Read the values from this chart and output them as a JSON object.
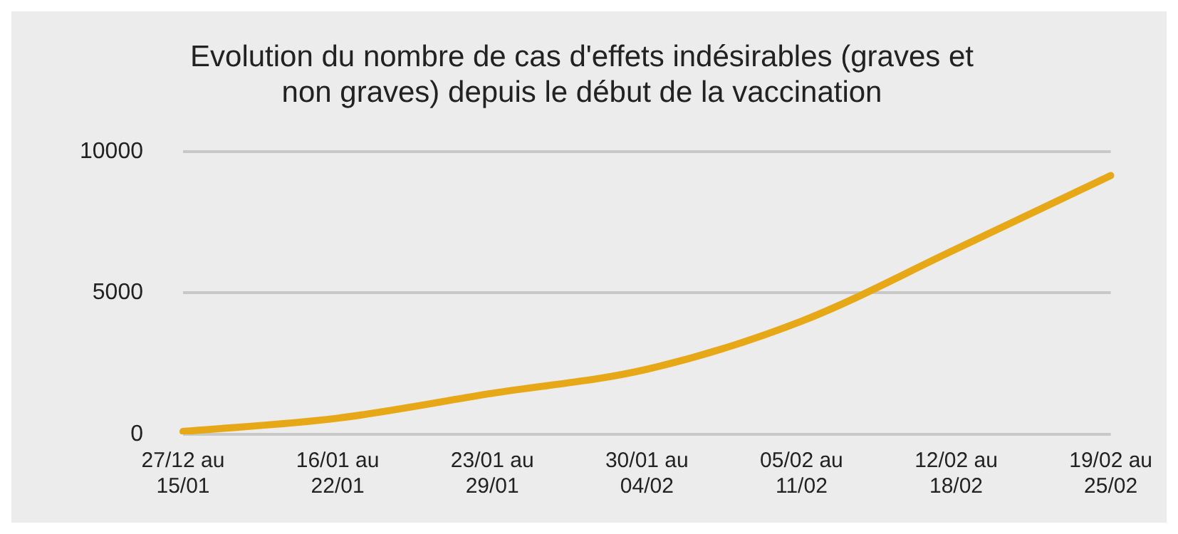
{
  "chart_data": {
    "type": "line",
    "title": "Evolution du nombre de cas d'effets indésirables (graves et\nnon graves) depuis le début de la vaccination",
    "categories": [
      "27/12 au\n15/01",
      "16/01 au\n22/01",
      "23/01 au\n29/01",
      "30/01 au\n04/02",
      "05/02 au\n11/02",
      "12/02 au\n18/02",
      "19/02 au\n25/02"
    ],
    "series": [
      {
        "color": "#e6a817",
        "values": [
          100,
          570,
          1450,
          2300,
          4000,
          6550,
          9150
        ]
      }
    ],
    "ylim": [
      0,
      10000
    ],
    "yticks": [
      0,
      5000,
      10000
    ],
    "grid": "y",
    "legend": false,
    "marker": "none",
    "line_style": "solid"
  }
}
